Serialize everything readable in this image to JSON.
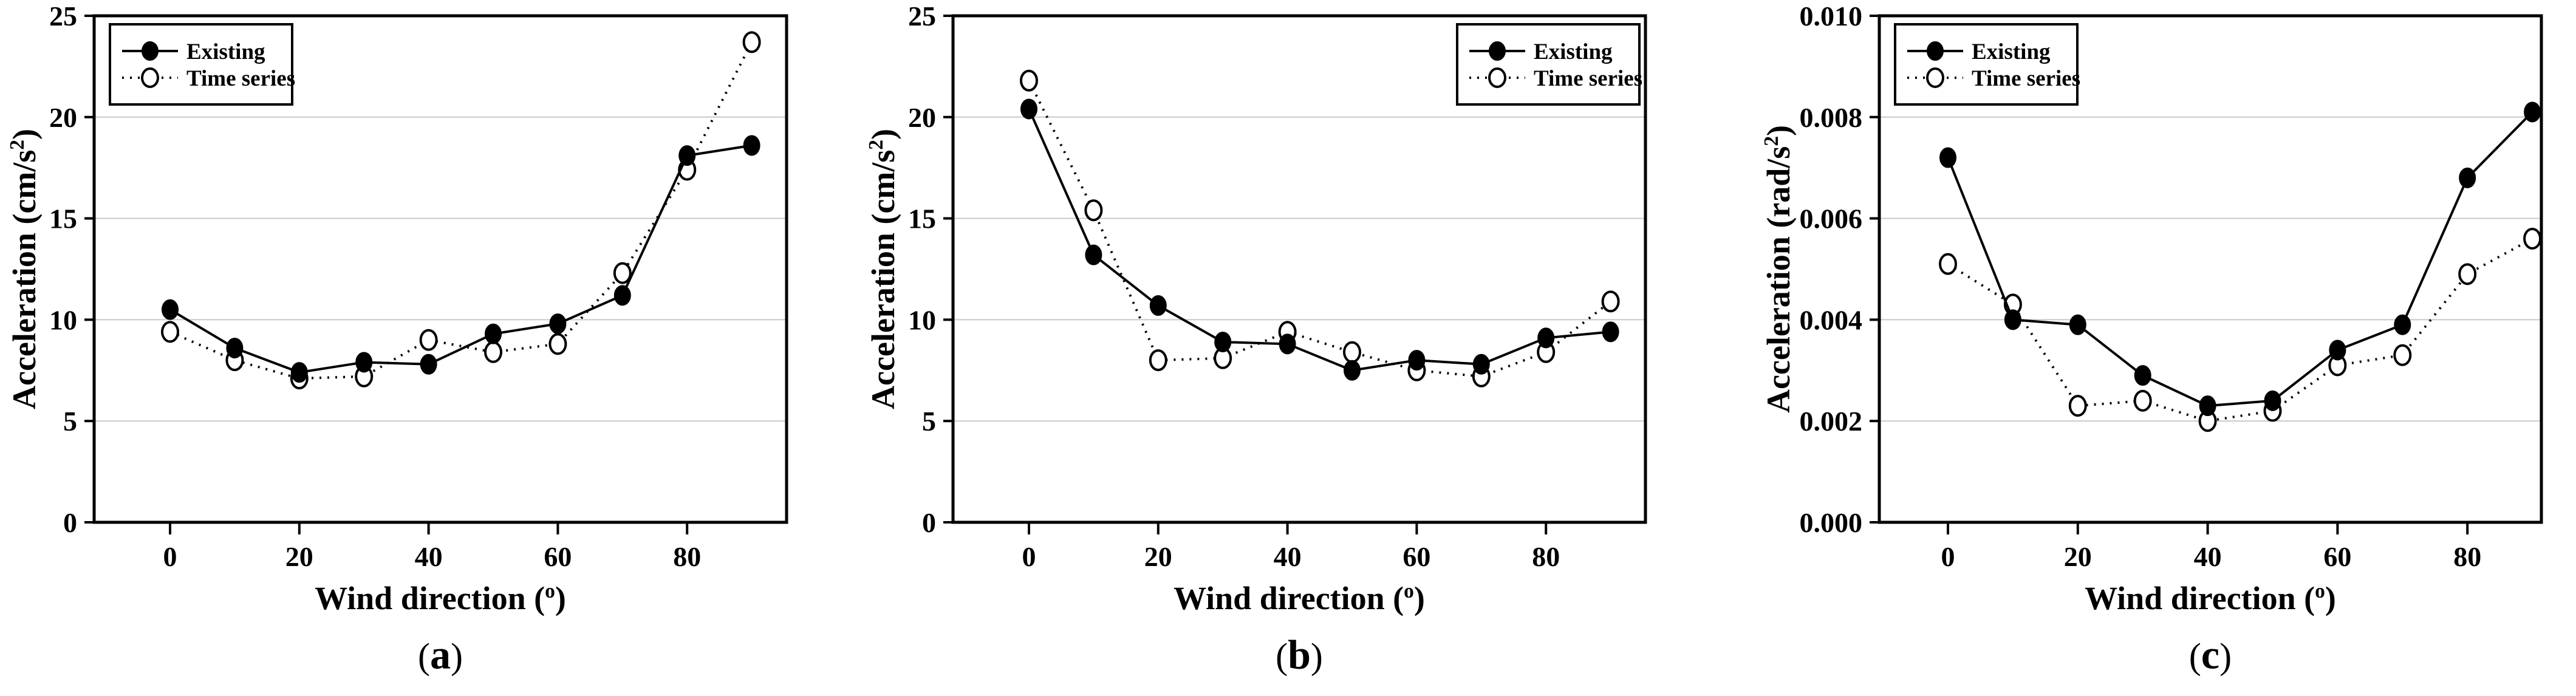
{
  "colors": {
    "background": "#ffffff",
    "axis": "#000000",
    "grid": "#c9c9c9",
    "marker_fill": "#000000",
    "marker_open_fill": "#ffffff"
  },
  "chart_data": [
    {
      "id": "a",
      "type": "line",
      "caption": {
        "open": "(",
        "letter": "a",
        "close": ")"
      },
      "xlabel": {
        "text": "Wind direction (",
        "sup": "o",
        "close": ")"
      },
      "ylabel": {
        "text": "Acceleration (cm/s",
        "sup": "2",
        "close": ")"
      },
      "x": [
        0,
        10,
        20,
        30,
        40,
        50,
        60,
        70,
        80,
        90
      ],
      "xticks": [
        0,
        20,
        40,
        60,
        80
      ],
      "xtick_labels": [
        "0",
        "20",
        "40",
        "60",
        "80"
      ],
      "ylim": [
        0,
        25
      ],
      "yticks": [
        0,
        5,
        10,
        15,
        20,
        25
      ],
      "ytick_labels": [
        "0",
        "5",
        "10",
        "15",
        "20",
        "25"
      ],
      "grid": "horizontal",
      "legend_position": "top-left",
      "series": [
        {
          "name": "Existing",
          "marker": "filled-circle",
          "line": "solid",
          "values": [
            10.5,
            8.6,
            7.4,
            7.9,
            7.8,
            9.3,
            9.8,
            11.2,
            18.1,
            18.6
          ]
        },
        {
          "name": "Time series",
          "marker": "open-circle",
          "line": "dotted",
          "values": [
            9.4,
            8.0,
            7.1,
            7.2,
            9.0,
            8.4,
            8.8,
            12.3,
            17.4,
            23.7
          ]
        }
      ]
    },
    {
      "id": "b",
      "type": "line",
      "caption": {
        "open": "(",
        "letter": "b",
        "close": ")"
      },
      "xlabel": {
        "text": "Wind direction (",
        "sup": "o",
        "close": ")"
      },
      "ylabel": {
        "text": "Acceleration (cm/s",
        "sup": "2",
        "close": ")"
      },
      "x": [
        0,
        10,
        20,
        30,
        40,
        50,
        60,
        70,
        80,
        90
      ],
      "xticks": [
        0,
        20,
        40,
        60,
        80
      ],
      "xtick_labels": [
        "0",
        "20",
        "40",
        "60",
        "80"
      ],
      "ylim": [
        0,
        25
      ],
      "yticks": [
        0,
        5,
        10,
        15,
        20,
        25
      ],
      "ytick_labels": [
        "0",
        "5",
        "10",
        "15",
        "20",
        "25"
      ],
      "grid": "horizontal",
      "legend_position": "top-right",
      "series": [
        {
          "name": "Existing",
          "marker": "filled-circle",
          "line": "solid",
          "values": [
            20.4,
            13.2,
            10.7,
            8.9,
            8.8,
            7.5,
            8.0,
            7.8,
            9.1,
            9.4
          ]
        },
        {
          "name": "Time series",
          "marker": "open-circle",
          "line": "dotted",
          "values": [
            21.8,
            15.4,
            8.0,
            8.1,
            9.4,
            8.4,
            7.5,
            7.2,
            8.4,
            10.9
          ]
        }
      ]
    },
    {
      "id": "c",
      "type": "line",
      "caption": {
        "open": "(",
        "letter": "c",
        "close": ")"
      },
      "xlabel": {
        "text": "Wind direction (",
        "sup": "o",
        "close": ")"
      },
      "ylabel": {
        "text": "Acceleration (rad/s",
        "sup": "2",
        "close": ")"
      },
      "x": [
        0,
        10,
        20,
        30,
        40,
        50,
        60,
        70,
        80,
        90
      ],
      "xticks": [
        0,
        20,
        40,
        60,
        80
      ],
      "xtick_labels": [
        "0",
        "20",
        "40",
        "60",
        "80"
      ],
      "ylim": [
        0,
        0.01
      ],
      "yticks": [
        0,
        0.002,
        0.004,
        0.006,
        0.008,
        0.01
      ],
      "ytick_labels": [
        "0.000",
        "0.002",
        "0.004",
        "0.006",
        "0.008",
        "0.010"
      ],
      "grid": "horizontal",
      "legend_position": "top-left",
      "series": [
        {
          "name": "Existing",
          "marker": "filled-circle",
          "line": "solid",
          "values": [
            0.0072,
            0.004,
            0.0039,
            0.0029,
            0.0023,
            0.0024,
            0.0034,
            0.0039,
            0.0068,
            0.0081
          ]
        },
        {
          "name": "Time series",
          "marker": "open-circle",
          "line": "dotted",
          "values": [
            0.0051,
            0.0043,
            0.0023,
            0.0024,
            0.002,
            0.0022,
            0.0031,
            0.0033,
            0.0049,
            0.0056
          ]
        }
      ]
    }
  ]
}
